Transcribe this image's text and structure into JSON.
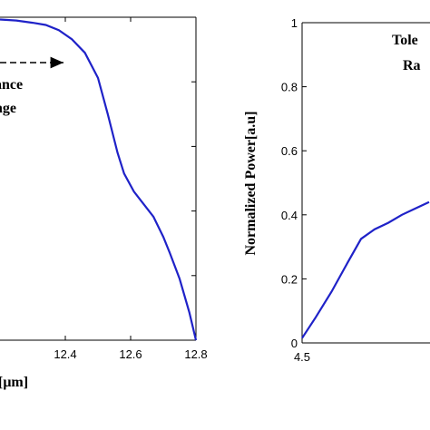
{
  "chart_data": [
    {
      "type": "line",
      "panel": "left",
      "xlabel_visible_fragment": "[μm]",
      "ylabel": "",
      "x_ticks": [
        "12.4",
        "12.6",
        "12.8"
      ],
      "xlim": [
        12.2,
        12.8
      ],
      "ylim": [
        0,
        1
      ],
      "annotation": {
        "lines": [
          "ance",
          "nge"
        ]
      },
      "series": [
        {
          "color": "#1f22c8",
          "x": [
            12.2,
            12.25,
            12.3,
            12.34,
            12.38,
            12.42,
            12.46,
            12.5,
            12.53,
            12.56,
            12.58,
            12.61,
            12.64,
            12.67,
            12.7,
            12.72,
            12.75,
            12.78,
            12.8
          ],
          "y": [
            0.993,
            0.99,
            0.983,
            0.976,
            0.96,
            0.932,
            0.89,
            0.812,
            0.7,
            0.58,
            0.516,
            0.46,
            0.421,
            0.382,
            0.32,
            0.27,
            0.19,
            0.085,
            0.0
          ]
        }
      ]
    },
    {
      "type": "line",
      "panel": "right",
      "ylabel": "Normalized Power[a.u]",
      "x_ticks": [
        "4.5"
      ],
      "y_ticks": [
        "0",
        "0.2",
        "0.4",
        "0.6",
        "0.8",
        "1"
      ],
      "xlim": [
        4.5,
        5.7
      ],
      "ylim": [
        0,
        1
      ],
      "annotation": {
        "lines": [
          "Tole",
          "Ra"
        ]
      },
      "series": [
        {
          "color": "#1f22c8",
          "x": [
            4.5,
            4.56,
            4.63,
            4.7,
            4.76,
            4.82,
            4.88,
            4.94,
            5.0,
            5.06
          ],
          "y": [
            0.015,
            0.08,
            0.16,
            0.25,
            0.325,
            0.355,
            0.375,
            0.4,
            0.42,
            0.44
          ]
        }
      ]
    }
  ]
}
